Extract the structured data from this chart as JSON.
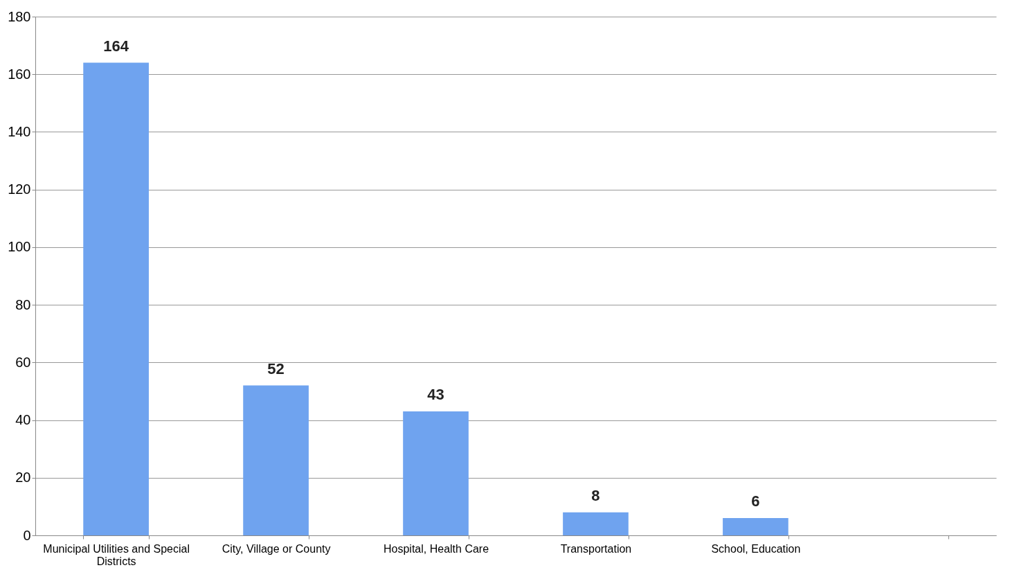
{
  "chart_data": {
    "type": "bar",
    "categories": [
      "Municipal Utilities and Special Districts",
      "City, Village or County",
      "Hospital, Health Care",
      "Transportation",
      "School, Education",
      null
    ],
    "values": [
      164,
      52,
      43,
      8,
      6,
      null
    ],
    "color": "#6fa3ef",
    "ylim": [
      0,
      180
    ],
    "yticks": [
      0,
      20,
      40,
      60,
      80,
      100,
      120,
      140,
      160,
      180
    ],
    "grid": "y",
    "data_labels": true
  }
}
